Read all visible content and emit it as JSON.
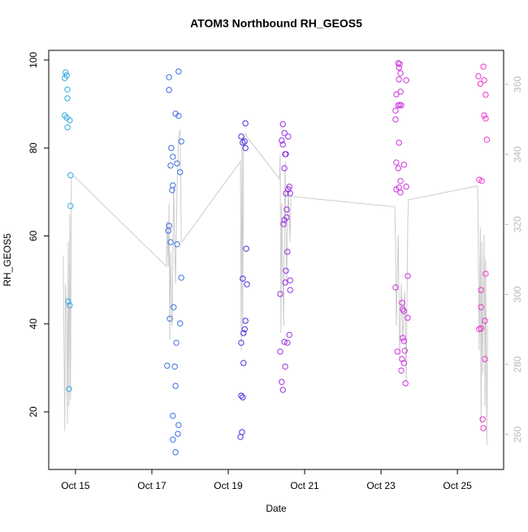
{
  "chart_data": {
    "type": "scatter",
    "title": "ATOM3 Northbound RH_GEOS5",
    "x_label": "Date",
    "y_label": "RH_GEOS5",
    "xlim": [
      14.3,
      26.21
    ],
    "ylim": [
      6.9,
      102.2
    ],
    "y2lim": [
      250,
      369.7
    ],
    "xticks": [
      {
        "value": 15,
        "label": "Oct 15"
      },
      {
        "value": 17,
        "label": "Oct 17"
      },
      {
        "value": 19,
        "label": "Oct 19"
      },
      {
        "value": 21,
        "label": "Oct 21"
      },
      {
        "value": 23,
        "label": "Oct 23"
      },
      {
        "value": 25,
        "label": "Oct 25"
      }
    ],
    "yticks": [
      20,
      40,
      60,
      80,
      100
    ],
    "y2ticks": [
      260,
      280,
      300,
      320,
      340,
      360
    ],
    "series": [
      {
        "type": "line",
        "axis": "y2",
        "color": "#cccccc",
        "x": [
          14.68,
          14.72,
          14.74,
          14.77,
          14.79,
          14.81,
          14.83,
          14.85,
          14.87,
          14.89,
          14.94,
          17.38,
          17.4,
          17.43,
          17.45,
          17.47,
          17.49,
          17.53,
          17.57,
          17.62,
          17.66,
          17.7,
          17.74,
          17.77,
          17.79,
          19.32,
          19.34,
          19.36,
          19.38,
          19.4,
          19.45,
          19.49,
          20.34,
          20.36,
          20.38,
          20.4,
          20.45,
          20.49,
          20.53,
          20.57,
          20.62,
          20.64,
          23.36,
          23.38,
          23.4,
          23.45,
          23.49,
          23.53,
          23.57,
          23.62,
          23.66,
          23.7,
          23.72,
          25.53,
          25.55,
          25.57,
          25.6,
          25.62,
          25.64,
          25.66,
          25.7,
          25.72,
          25.74,
          25.77,
          25.79
        ],
        "values": [
          311,
          261,
          303,
          291,
          263,
          315,
          268,
          323,
          270,
          333,
          334,
          308,
          321,
          308,
          326,
          287,
          312,
          291,
          331,
          303,
          331,
          345,
          347,
          315,
          315,
          338,
          284,
          345,
          291,
          343,
          346,
          345,
          333,
          340,
          289,
          326,
          291,
          338,
          303,
          331,
          315,
          328,
          325,
          315,
          291,
          317,
          282,
          303,
          287,
          301,
          275,
          321,
          327,
          331,
          310,
          284,
          319,
          263,
          315,
          277,
          317,
          268,
          310,
          257,
          291
        ]
      },
      {
        "color": "#2fa8e0",
        "x": [
          14.74,
          14.72,
          14.77,
          14.79,
          14.79,
          14.72,
          14.77,
          14.85,
          14.79,
          14.87,
          14.87,
          14.81,
          14.85,
          14.83
        ],
        "values": [
          97.2,
          95.9,
          96.5,
          93.3,
          91.3,
          87.4,
          86.9,
          86.3,
          84.7,
          73.8,
          66.8,
          45.1,
          44.2,
          25.2
        ]
      },
      {
        "color": "#3a6fe0",
        "x": [
          17.45,
          17.45,
          17.7,
          17.62,
          17.7,
          17.77,
          17.51,
          17.55,
          17.49,
          17.66,
          17.74,
          17.55,
          17.53,
          17.45,
          17.43,
          17.49,
          17.66,
          17.77,
          17.57,
          17.47,
          17.74,
          17.64,
          17.4,
          17.6,
          17.62,
          17.55,
          17.7,
          17.68,
          17.55,
          17.62
        ],
        "values": [
          96.1,
          93.2,
          97.4,
          87.8,
          87.3,
          81.5,
          80.0,
          78.0,
          76.0,
          76.5,
          74.5,
          71.5,
          70.4,
          62.3,
          61.2,
          58.6,
          58.1,
          50.5,
          43.8,
          41.2,
          40.1,
          35.7,
          30.5,
          30.3,
          25.9,
          19.1,
          17.0,
          15.0,
          13.7,
          10.8
        ]
      },
      {
        "color": "#4a30e0",
        "x": [
          19.45,
          19.34,
          19.43,
          19.38,
          19.45,
          19.47,
          19.38,
          19.49,
          19.45,
          19.43,
          19.4,
          19.34,
          19.4,
          19.34,
          19.38,
          19.36,
          19.32
        ],
        "values": [
          85.6,
          82.6,
          81.5,
          81.2,
          80.0,
          57.1,
          50.3,
          49.0,
          40.7,
          38.8,
          37.9,
          35.7,
          31.1,
          23.7,
          23.3,
          15.4,
          14.3
        ]
      },
      {
        "color": "#9a30e0",
        "x": [
          20.43,
          20.47,
          20.57,
          20.4,
          20.43,
          20.49,
          20.51,
          20.47,
          20.6,
          20.57,
          20.51,
          20.62,
          20.53,
          20.53,
          20.47,
          20.45,
          20.55,
          20.51,
          20.62,
          20.49,
          20.62,
          20.36,
          20.6,
          20.47,
          20.55,
          20.36,
          20.49,
          20.4,
          20.43
        ],
        "values": [
          85.4,
          83.4,
          82.6,
          81.7,
          80.8,
          78.6,
          78.6,
          75.4,
          71.2,
          70.6,
          69.7,
          69.7,
          66.0,
          64.2,
          63.6,
          62.7,
          56.4,
          52.1,
          49.9,
          49.4,
          47.7,
          46.8,
          37.5,
          35.9,
          35.7,
          33.7,
          30.3,
          26.8,
          25.0
        ]
      },
      {
        "color": "#d030e0",
        "x": [
          23.45,
          23.49,
          23.47,
          23.51,
          23.47,
          23.66,
          23.51,
          23.4,
          23.49,
          23.53,
          23.38,
          23.45,
          23.38,
          23.47,
          23.4,
          23.45,
          23.6,
          23.51,
          23.47,
          23.4,
          23.51,
          23.66,
          23.7,
          23.38,
          23.55,
          23.57,
          23.6,
          23.7,
          23.57,
          23.6,
          23.62,
          23.43,
          23.55,
          23.6,
          23.53,
          23.64
        ],
        "values": [
          99.3,
          99.1,
          98.3,
          97.0,
          95.6,
          95.4,
          92.8,
          92.2,
          89.8,
          89.7,
          88.5,
          89.7,
          86.5,
          81.2,
          76.7,
          75.4,
          76.2,
          72.5,
          71.0,
          70.6,
          69.9,
          71.2,
          50.9,
          48.3,
          44.8,
          43.3,
          42.9,
          41.4,
          36.8,
          36.1,
          33.9,
          33.7,
          32.0,
          31.1,
          29.4,
          26.5
        ]
      },
      {
        "color": "#f030d0",
        "x": [
          25.68,
          25.55,
          25.7,
          25.6,
          25.74,
          25.7,
          25.74,
          25.77,
          25.57,
          25.64,
          25.74,
          25.62,
          25.62,
          25.72,
          25.62,
          25.57,
          25.72,
          25.66,
          25.68
        ],
        "values": [
          98.5,
          96.3,
          95.4,
          94.6,
          92.1,
          87.4,
          86.7,
          81.9,
          72.8,
          72.5,
          51.4,
          47.7,
          43.8,
          40.7,
          39.0,
          38.8,
          32.0,
          18.3,
          16.3
        ]
      }
    ]
  }
}
